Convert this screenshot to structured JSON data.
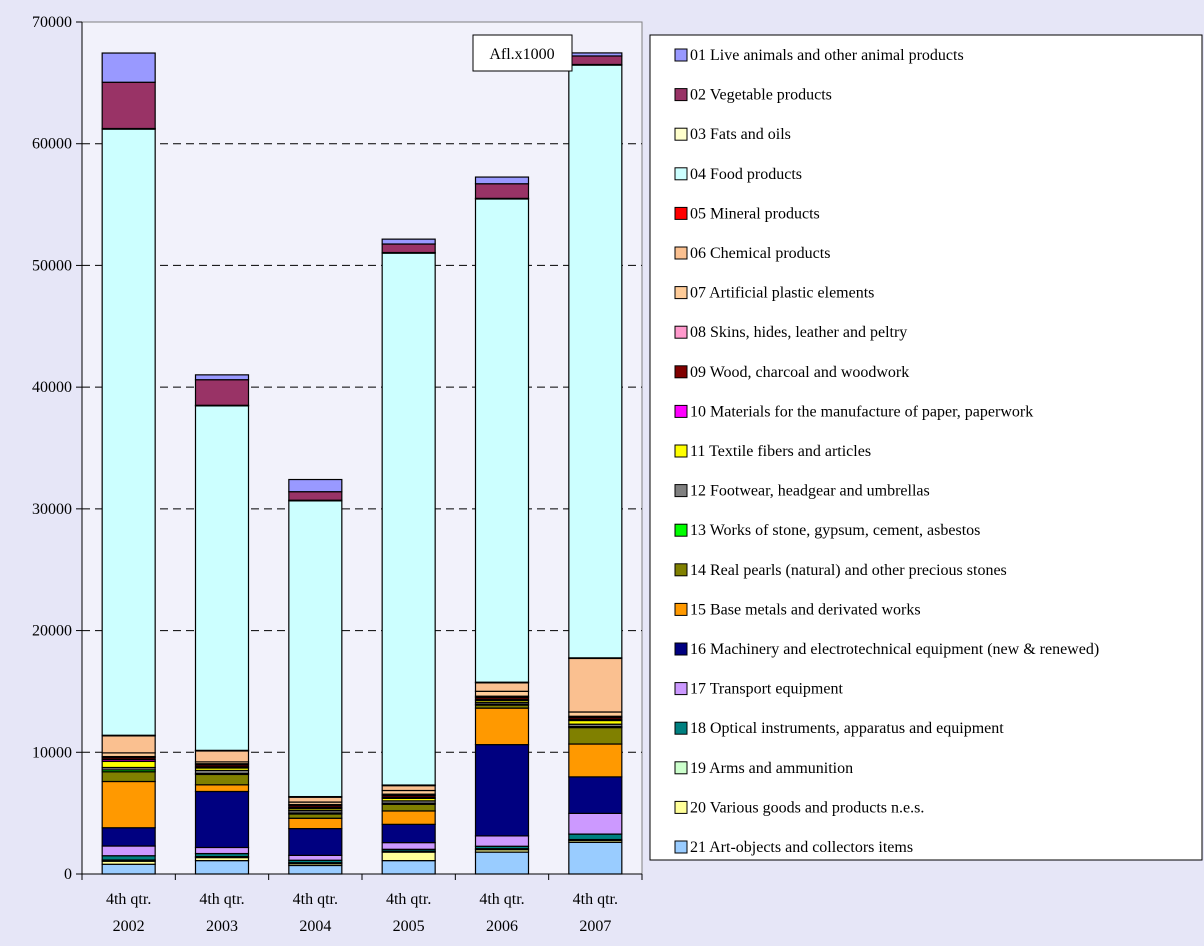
{
  "chart_data": {
    "type": "bar",
    "stacked": true,
    "unit_label": "Afl.x1000",
    "categories": [
      "4th qtr. 2002",
      "4th qtr. 2003",
      "4th qtr. 2004",
      "4th qtr. 2005",
      "4th qtr. 2006",
      "4th qtr. 2007"
    ],
    "category_lines": [
      [
        "4th qtr.",
        "2002"
      ],
      [
        "4th qtr.",
        "2003"
      ],
      [
        "4th qtr.",
        "2004"
      ],
      [
        "4th qtr.",
        "2005"
      ],
      [
        "4th qtr.",
        "2006"
      ],
      [
        "4th qtr.",
        "2007"
      ]
    ],
    "ylim": [
      0,
      70000
    ],
    "yticks": [
      "0",
      "10000",
      "20000",
      "30000",
      "40000",
      "50000",
      "60000",
      "70000"
    ],
    "grid": true,
    "legend_position": "right",
    "series": [
      {
        "name": "21 Art-objects and collectors items",
        "color": "#99ccff",
        "values": [
          800,
          1100,
          700,
          1100,
          1800,
          2600
        ]
      },
      {
        "name": "20 Various goods and products n.e.s.",
        "color": "#ffff99",
        "values": [
          250,
          250,
          150,
          700,
          200,
          150
        ]
      },
      {
        "name": "19 Arms and ammunition",
        "color": "#ccffcc",
        "values": [
          100,
          80,
          80,
          80,
          80,
          80
        ]
      },
      {
        "name": "18 Optical instruments, apparatus and equipment",
        "color": "#008080",
        "values": [
          350,
          250,
          200,
          150,
          200,
          450
        ]
      },
      {
        "name": "17 Transport equipment",
        "color": "#cc99ff",
        "values": [
          800,
          500,
          400,
          550,
          850,
          1700
        ]
      },
      {
        "name": "16 Machinery and electrotechnical equipment (new & renewed)",
        "color": "#000080",
        "values": [
          1500,
          4600,
          2200,
          1500,
          7500,
          3000
        ]
      },
      {
        "name": "15 Base metals and derivated works",
        "color": "#ff9900",
        "values": [
          3800,
          550,
          850,
          1100,
          3000,
          2700
        ]
      },
      {
        "name": "14 Real pearls (natural) and other precious stones",
        "color": "#808000",
        "values": [
          800,
          850,
          350,
          550,
          250,
          1350
        ]
      },
      {
        "name": "13 Works of stone, gypsum, cement, asbestos",
        "color": "#00ff00",
        "values": [
          150,
          80,
          80,
          80,
          80,
          80
        ]
      },
      {
        "name": "12 Footwear, headgear and umbrellas",
        "color": "#808080",
        "values": [
          200,
          250,
          200,
          200,
          150,
          200
        ]
      },
      {
        "name": "11 Textile fibers and articles",
        "color": "#ffff00",
        "values": [
          500,
          200,
          150,
          200,
          150,
          300
        ]
      },
      {
        "name": "10 Materials for the manufacture of paper, paperwork",
        "color": "#ff00ff",
        "values": [
          150,
          100,
          100,
          100,
          100,
          100
        ]
      },
      {
        "name": "09 Wood, charcoal and woodwork",
        "color": "#800000",
        "values": [
          150,
          150,
          150,
          150,
          150,
          150
        ]
      },
      {
        "name": "08 Skins, hides, leather and peltry",
        "color": "#ff99cc",
        "values": [
          100,
          100,
          100,
          100,
          100,
          100
        ]
      },
      {
        "name": "07 Artificial plastic elements",
        "color": "#ffcc99",
        "values": [
          300,
          150,
          200,
          300,
          400,
          350
        ]
      },
      {
        "name": "06 Chemical products",
        "color": "#fac090",
        "values": [
          1400,
          900,
          400,
          400,
          700,
          4400
        ]
      },
      {
        "name": "05 Mineral products",
        "color": "#ff0000",
        "values": [
          50,
          50,
          50,
          50,
          50,
          50
        ]
      },
      {
        "name": "04 Food products",
        "color": "#ccffff",
        "values": [
          49800,
          28300,
          24300,
          43700,
          39700,
          48700
        ]
      },
      {
        "name": "03 Fats and oils",
        "color": "#ffffcc",
        "values": [
          50,
          50,
          50,
          50,
          50,
          50
        ]
      },
      {
        "name": "02 Vegetable products",
        "color": "#993366",
        "values": [
          3800,
          2100,
          700,
          700,
          1200,
          700
        ]
      },
      {
        "name": "01 Live animals and other animal products",
        "color": "#9999ff",
        "values": [
          2400,
          400,
          1000,
          400,
          550,
          250
        ]
      }
    ]
  }
}
